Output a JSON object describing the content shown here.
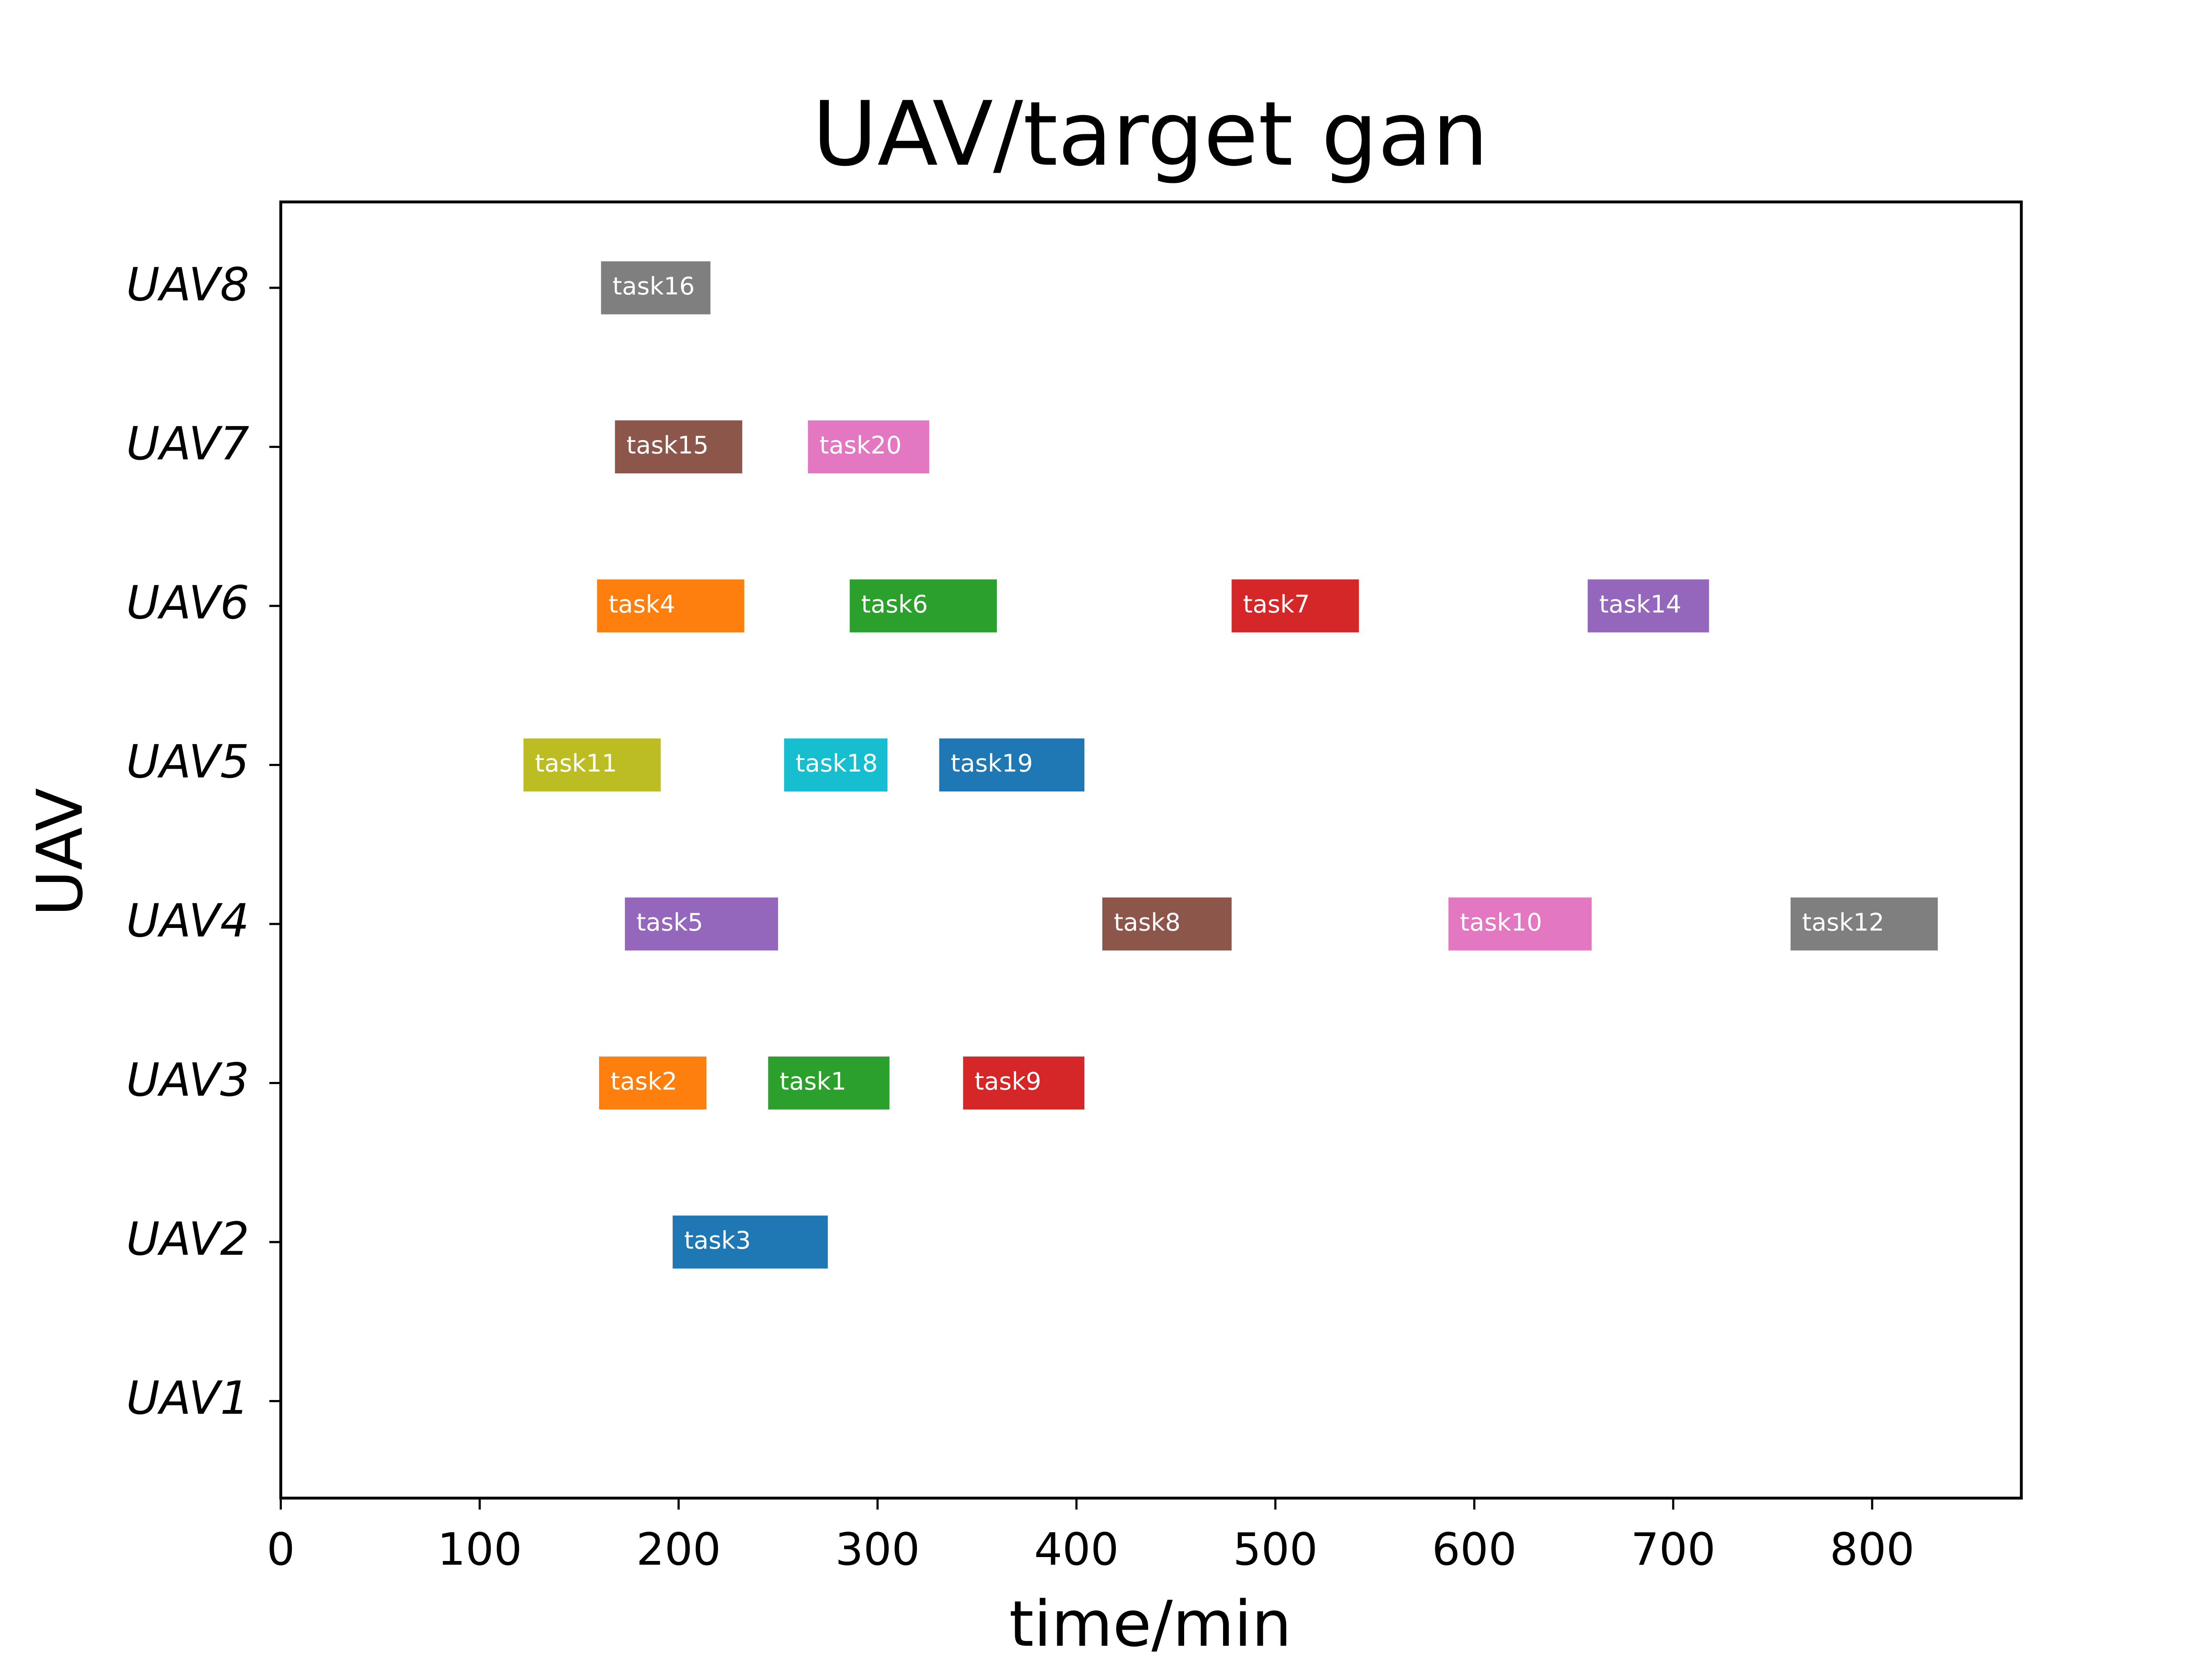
{
  "chart_data": {
    "type": "gantt",
    "title": "UAV/target gan",
    "x_label": "time/min",
    "y_label": "UAV",
    "categories": [
      "UAV1",
      "UAV2",
      "UAV3",
      "UAV4",
      "UAV5",
      "UAV6",
      "UAV7",
      "UAV8"
    ],
    "xlim": [
      0,
      875
    ],
    "xticks": [
      0,
      100,
      200,
      300,
      400,
      500,
      600,
      700,
      800
    ],
    "ylim": [
      0.39,
      8.54
    ],
    "tasks": [
      {
        "name": "task16",
        "uav": "UAV8",
        "start": 161,
        "end": 216,
        "color": "#7f7f7f"
      },
      {
        "name": "task15",
        "uav": "UAV7",
        "start": 168,
        "end": 232,
        "color": "#8c564b"
      },
      {
        "name": "task20",
        "uav": "UAV7",
        "start": 265,
        "end": 326,
        "color": "#e377c2"
      },
      {
        "name": "task4",
        "uav": "UAV6",
        "start": 159,
        "end": 233,
        "color": "#ff7f0e"
      },
      {
        "name": "task6",
        "uav": "UAV6",
        "start": 286,
        "end": 360,
        "color": "#2ca02c"
      },
      {
        "name": "task7",
        "uav": "UAV6",
        "start": 478,
        "end": 542,
        "color": "#d62728"
      },
      {
        "name": "task14",
        "uav": "UAV6",
        "start": 657,
        "end": 718,
        "color": "#9467bd"
      },
      {
        "name": "task11",
        "uav": "UAV5",
        "start": 122,
        "end": 191,
        "color": "#bcbd22"
      },
      {
        "name": "task18",
        "uav": "UAV5",
        "start": 253,
        "end": 305,
        "color": "#17becf"
      },
      {
        "name": "task19",
        "uav": "UAV5",
        "start": 331,
        "end": 404,
        "color": "#1f77b4"
      },
      {
        "name": "task5",
        "uav": "UAV4",
        "start": 173,
        "end": 250,
        "color": "#9467bd"
      },
      {
        "name": "task8",
        "uav": "UAV4",
        "start": 413,
        "end": 478,
        "color": "#8c564b"
      },
      {
        "name": "task10",
        "uav": "UAV4",
        "start": 587,
        "end": 659,
        "color": "#e377c2"
      },
      {
        "name": "task12",
        "uav": "UAV4",
        "start": 759,
        "end": 833,
        "color": "#7f7f7f"
      },
      {
        "name": "task2",
        "uav": "UAV3",
        "start": 160,
        "end": 214,
        "color": "#ff7f0e"
      },
      {
        "name": "task1",
        "uav": "UAV3",
        "start": 245,
        "end": 306,
        "color": "#2ca02c"
      },
      {
        "name": "task9",
        "uav": "UAV3",
        "start": 343,
        "end": 404,
        "color": "#d62728"
      },
      {
        "name": "task3",
        "uav": "UAV2",
        "start": 197,
        "end": 275,
        "color": "#1f77b4"
      }
    ]
  }
}
